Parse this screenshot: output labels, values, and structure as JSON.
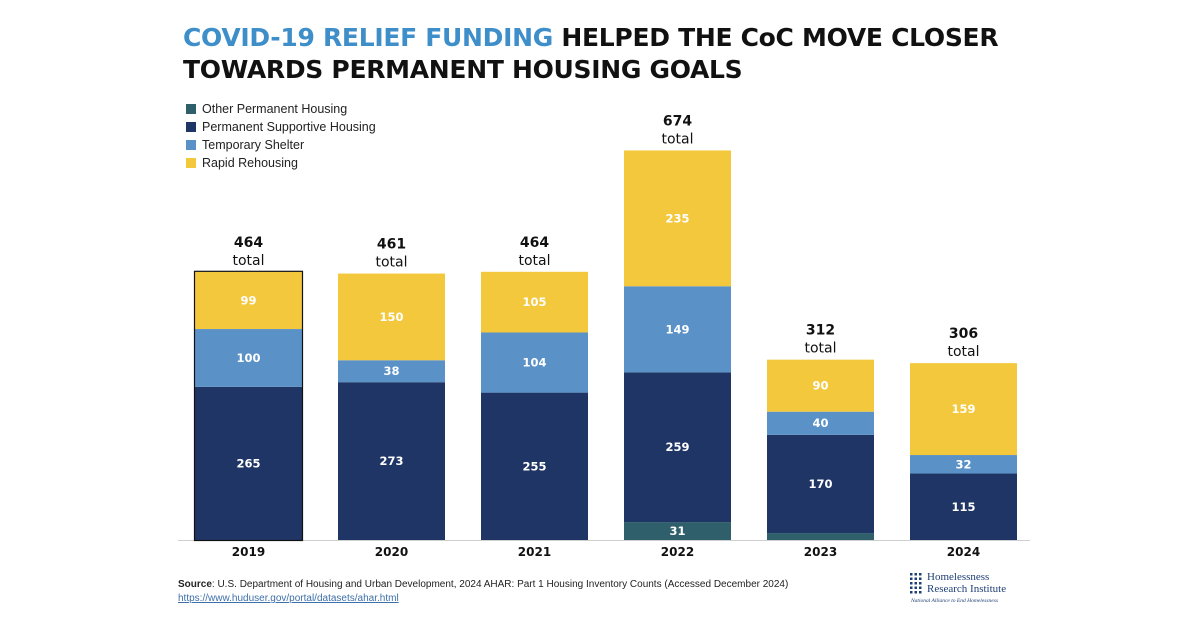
{
  "header": {
    "title_highlight": "COVID-19 RELIEF FUNDING",
    "title_rest_line1": " HELPED THE CoC MOVE CLOSER",
    "title_line2": "TOWARDS PERMANENT HOUSING GOALS"
  },
  "legend": [
    {
      "label": "Other Permanent Housing",
      "color": "#2e5f6b"
    },
    {
      "label": "Permanent Supportive Housing",
      "color": "#1f3565"
    },
    {
      "label": "Temporary Shelter",
      "color": "#5a92c8"
    },
    {
      "label": "Rapid Rehousing",
      "color": "#f3c83d"
    }
  ],
  "chart_data": {
    "type": "bar",
    "stacked": true,
    "categories": [
      "2019",
      "2020",
      "2021",
      "2022",
      "2023",
      "2024"
    ],
    "series": [
      {
        "name": "Other Permanent Housing",
        "color": "#2e5f6b",
        "values": [
          0,
          0,
          0,
          31,
          12,
          0
        ],
        "labels": [
          "",
          "",
          "",
          "31",
          "",
          ""
        ]
      },
      {
        "name": "Permanent Supportive Housing",
        "color": "#1f3565",
        "values": [
          265,
          273,
          255,
          259,
          170,
          115
        ],
        "labels": [
          "265",
          "273",
          "255",
          "259",
          "170",
          "115"
        ]
      },
      {
        "name": "Temporary Shelter",
        "color": "#5a92c8",
        "values": [
          100,
          38,
          104,
          149,
          40,
          32
        ],
        "labels": [
          "100",
          "38",
          "104",
          "149",
          "40",
          "32"
        ]
      },
      {
        "name": "Rapid Rehousing",
        "color": "#f3c83d",
        "values": [
          99,
          150,
          105,
          235,
          90,
          159
        ],
        "labels": [
          "99",
          "150",
          "105",
          "235",
          "90",
          "159"
        ]
      }
    ],
    "totals": [
      "464",
      "461",
      "464",
      "674",
      "312",
      "306"
    ],
    "total_word": "total",
    "highlighted_category": "2019"
  },
  "source": {
    "label": "Source",
    "text": ": U.S. Department of Housing and Urban Development, 2024 AHAR: Part 1 Housing Inventory Counts (Accessed December 2024)",
    "url": "https://www.huduser.gov/portal/datasets/ahar.html"
  },
  "logo": {
    "line1": "Homelessness",
    "line2": "Research Institute",
    "line3": "National Alliance to End Homelessness"
  }
}
